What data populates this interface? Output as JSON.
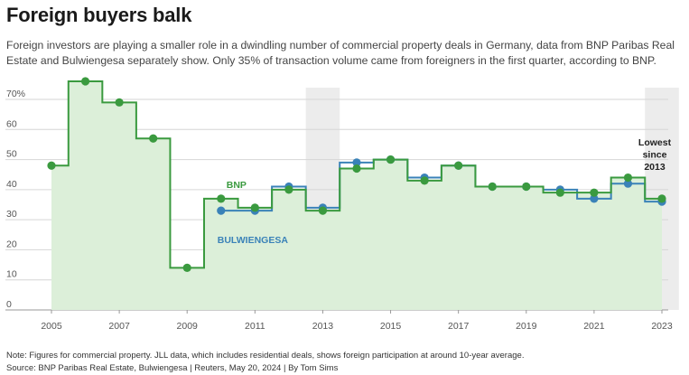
{
  "header": {
    "title": "Foreign buyers balk",
    "subtitle": "Foreign investors are playing a smaller role in a dwindling number of commercial property deals in Germany, data from BNP Paribas Real Estate and Bulwiengesa separately show. Only 35% of transaction volume came from foreigners in the first quarter, according to BNP."
  },
  "footer": {
    "note": "Note: Figures for commercial property. JLL data, which includes residential deals, shows foreign participation at around 10-year average.",
    "source": "Source: BNP Paribas Real Estate, Bulwiengesa | Reuters, May 20, 2024 | By Tom Sims"
  },
  "colors": {
    "bnp": "#3a9a3f",
    "bnp_fill": "#dcefd9",
    "bulwiengesa": "#3a82b8",
    "highlight_band": "#ececec",
    "grid": "#d6d6d6",
    "axis_text": "#555555"
  },
  "chart_data": {
    "type": "line",
    "step": true,
    "title": "Foreign buyers balk",
    "xlabel": "",
    "ylabel": "",
    "xlim": [
      2005,
      2023
    ],
    "ylim": [
      0,
      70
    ],
    "yticks": [
      0,
      10,
      20,
      30,
      40,
      50,
      60,
      70
    ],
    "ytick_labels": [
      "0",
      "10",
      "20",
      "30",
      "40",
      "50",
      "60",
      "70%"
    ],
    "xticks": [
      2005,
      2007,
      2009,
      2011,
      2013,
      2015,
      2017,
      2019,
      2021,
      2023
    ],
    "xtick_labels": [
      "2005",
      "2007",
      "2009",
      "2011",
      "2013",
      "2015",
      "2017",
      "2019",
      "2021",
      "2023"
    ],
    "highlight_years": [
      2013,
      2023
    ],
    "series": [
      {
        "name": "BNP",
        "label": "BNP",
        "x": [
          2005,
          2006,
          2007,
          2008,
          2009,
          2010,
          2011,
          2012,
          2013,
          2014,
          2015,
          2016,
          2017,
          2018,
          2019,
          2020,
          2021,
          2022,
          2023
        ],
        "values": [
          48,
          76,
          69,
          57,
          14,
          37,
          34,
          40,
          33,
          47,
          50,
          43,
          48,
          41,
          41,
          39,
          39,
          44,
          37
        ]
      },
      {
        "name": "Bulwiengesa",
        "label": "BULWIENGESA",
        "x": [
          2010,
          2011,
          2012,
          2013,
          2014,
          2015,
          2016,
          2017,
          2018,
          2019,
          2020,
          2021,
          2022,
          2023
        ],
        "values": [
          33,
          33,
          41,
          34,
          49,
          50,
          44,
          48,
          41,
          41,
          40,
          37,
          42,
          36
        ]
      }
    ],
    "annotations": [
      {
        "text_lines": [
          "Lowest",
          "since",
          "2013"
        ],
        "year": 2023
      }
    ]
  }
}
